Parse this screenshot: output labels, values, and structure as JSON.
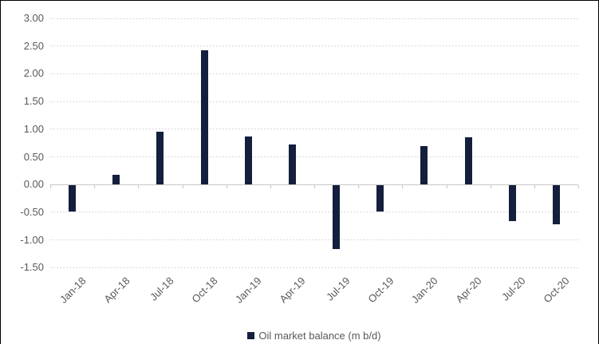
{
  "chart_data": {
    "type": "bar",
    "title": "",
    "xlabel": "",
    "ylabel": "",
    "categories": [
      "Jan-18",
      "Apr-18",
      "Jul-18",
      "Oct-18",
      "Jan-19",
      "Apr-19",
      "Jul-19",
      "Oct-19",
      "Jan-20",
      "Apr-20",
      "Jul-20",
      "Oct-20"
    ],
    "series": [
      {
        "name": "Oil market balance (m b/d)",
        "values": [
          -0.48,
          0.18,
          0.95,
          2.42,
          0.87,
          0.73,
          -1.15,
          -0.48,
          0.7,
          0.85,
          -0.64,
          -0.7
        ]
      }
    ],
    "ylim": [
      -1.5,
      3.0
    ],
    "y_tick_step": 0.5,
    "y_tick_labels": [
      "3.00",
      "2.50",
      "2.00",
      "1.50",
      "1.00",
      "0.50",
      "0.00",
      "-0.50",
      "-1.00",
      "-1.50"
    ],
    "grid": "horizontal-dashed",
    "legend_position": "bottom-center",
    "x_label_rotation_deg": -45
  },
  "colors": {
    "bar": "#141F3E",
    "grid": "#D9D9D9",
    "axis_line": "#C6C6C6",
    "tick_text": "#595959",
    "frame_border": "#000000",
    "background": "#FFFFFF"
  }
}
